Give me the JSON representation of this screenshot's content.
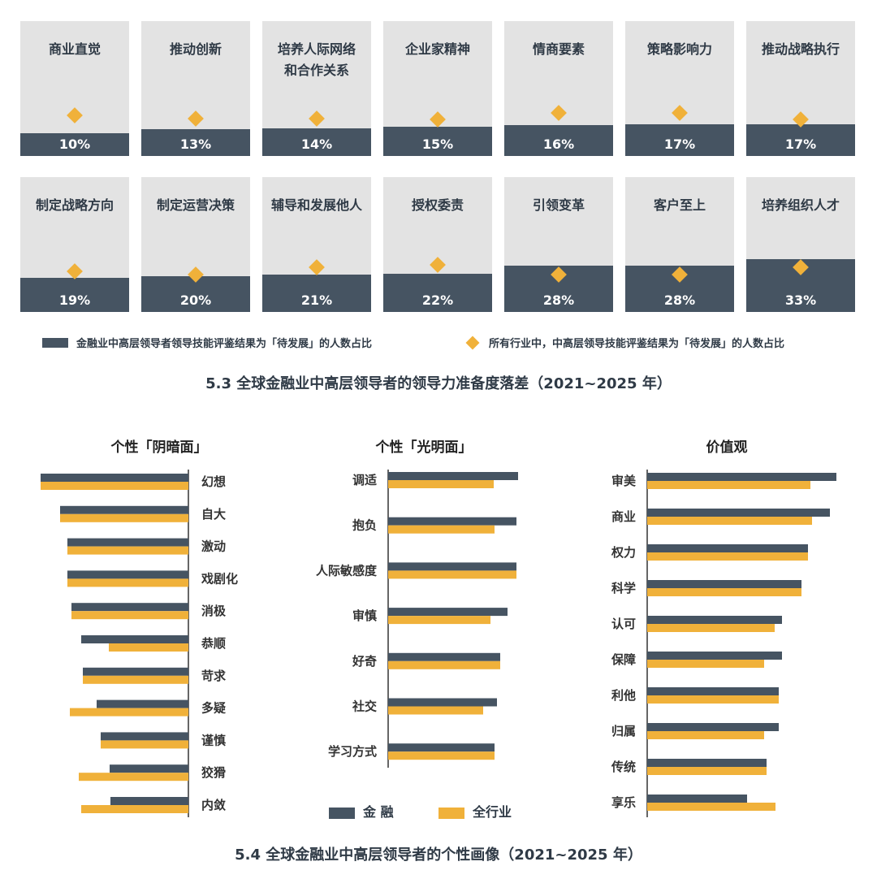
{
  "tiles": [
    {
      "label": "商业直觉",
      "pct": "10%",
      "value": 10,
      "all_industry_level": 0.3
    },
    {
      "label": "推动创新",
      "pct": "13%",
      "value": 13,
      "all_industry_level": 0.28
    },
    {
      "label": "培养人际网络\n和合作关系",
      "pct": "14%",
      "value": 14,
      "all_industry_level": 0.28
    },
    {
      "label": "企业家精神",
      "pct": "15%",
      "value": 15,
      "all_industry_level": 0.27
    },
    {
      "label": "情商要素",
      "pct": "16%",
      "value": 16,
      "all_industry_level": 0.32
    },
    {
      "label": "策略影响力",
      "pct": "17%",
      "value": 17,
      "all_industry_level": 0.32
    },
    {
      "label": "推动战略执行",
      "pct": "17%",
      "value": 17,
      "all_industry_level": 0.27
    },
    {
      "label": "制定战略方向",
      "pct": "19%",
      "value": 19,
      "all_industry_level": 0.3
    },
    {
      "label": "制定运营决策",
      "pct": "20%",
      "value": 20,
      "all_industry_level": 0.28
    },
    {
      "label": "辅导和发展他人",
      "pct": "21%",
      "value": 21,
      "all_industry_level": 0.33
    },
    {
      "label": "授权委责",
      "pct": "22%",
      "value": 22,
      "all_industry_level": 0.35
    },
    {
      "label": "引领变革",
      "pct": "28%",
      "value": 28,
      "all_industry_level": 0.28
    },
    {
      "label": "客户至上",
      "pct": "28%",
      "value": 28,
      "all_industry_level": 0.28
    },
    {
      "label": "培养组织人才",
      "pct": "33%",
      "value": 33,
      "all_industry_level": 0.33
    }
  ],
  "legend": {
    "finance": "金融业中高层领导者领导技能评鉴结果为「待发展」的人数占比",
    "all": "所有行业中，中高层领导技能评鉴结果为「待发展」的人数占比"
  },
  "caption1": "5.3 全球金融业中高层领导者的领导力准备度落差（2021~2025 年）",
  "caption2": "5.4 全球金融业中高层领导者的个性画像（2021~2025 年）",
  "legend2": {
    "finance": "金 融",
    "all": "全行业"
  },
  "colors": {
    "finance": "#465462",
    "all": "#f0b13a",
    "tile_bg": "#e3e3e3"
  },
  "chart_data": [
    {
      "type": "bar",
      "title": "个性「阴暗面」",
      "orientation": "horizontal-left",
      "categories": [
        "幻想",
        "自大",
        "激动",
        "戏剧化",
        "消极",
        "恭顺",
        "苛求",
        "多疑",
        "谨慎",
        "狡猾",
        "内敛"
      ],
      "series": [
        {
          "name": "金 融",
          "values": [
            182,
            158,
            149,
            149,
            144,
            132,
            130,
            113,
            108,
            97,
            96
          ]
        },
        {
          "name": "全行业",
          "values": [
            182,
            158,
            149,
            149,
            144,
            98,
            130,
            146,
            108,
            135,
            132
          ]
        }
      ]
    },
    {
      "type": "bar",
      "title": "个性「光明面」",
      "orientation": "horizontal-right",
      "categories": [
        "调适",
        "抱负",
        "人际敏感度",
        "审慎",
        "好奇",
        "社交",
        "学习方式"
      ],
      "series": [
        {
          "name": "金 融",
          "values": [
            160,
            158,
            158,
            147,
            138,
            134,
            131
          ]
        },
        {
          "name": "全行业",
          "values": [
            130,
            131,
            158,
            126,
            138,
            117,
            131
          ]
        }
      ]
    },
    {
      "type": "bar",
      "title": "价值观",
      "orientation": "horizontal-right",
      "categories": [
        "审美",
        "商业",
        "权力",
        "科学",
        "认可",
        "保障",
        "利他",
        "归属",
        "传统",
        "享乐"
      ],
      "series": [
        {
          "name": "金 融",
          "values": [
            233,
            225,
            198,
            190,
            166,
            166,
            162,
            162,
            147,
            123
          ]
        },
        {
          "name": "全行业",
          "values": [
            201,
            203,
            198,
            190,
            157,
            144,
            162,
            144,
            147,
            158
          ]
        }
      ]
    }
  ]
}
